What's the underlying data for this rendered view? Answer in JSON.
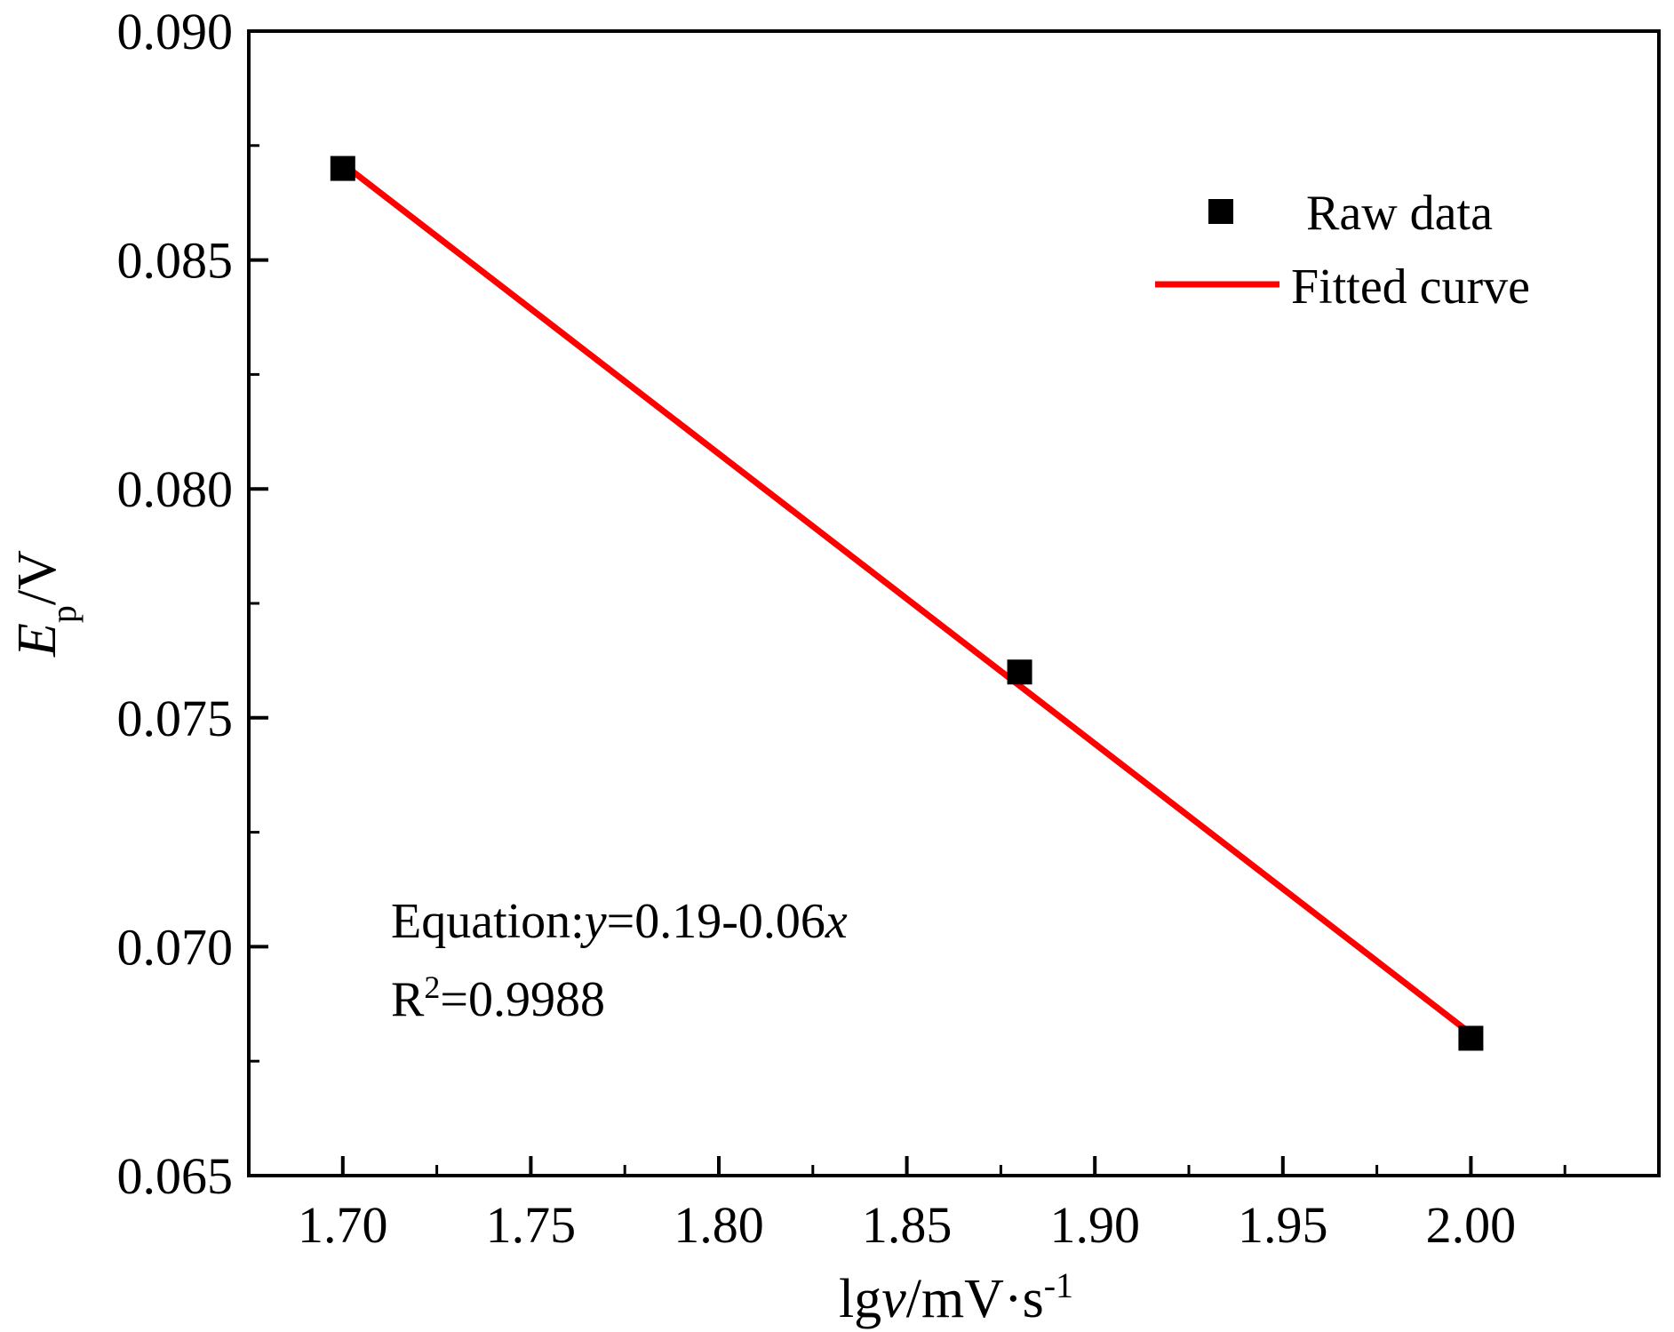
{
  "chart_data": {
    "type": "scatter",
    "x": [
      1.7,
      1.88,
      2.0
    ],
    "y": [
      0.087,
      0.076,
      0.068
    ],
    "series": [
      {
        "name": "Raw data",
        "kind": "scatter",
        "x": [
          1.7,
          1.88,
          2.0
        ],
        "y": [
          0.087,
          0.076,
          0.068
        ]
      },
      {
        "name": "Fitted curve",
        "kind": "line",
        "x": [
          1.7,
          2.0
        ],
        "y": [
          0.0871,
          0.0681
        ]
      }
    ],
    "xlim": [
      1.675,
      2.05
    ],
    "ylim": [
      0.065,
      0.09
    ],
    "xticks": [
      "1.70",
      "1.75",
      "1.80",
      "1.85",
      "1.90",
      "1.95",
      "2.00"
    ],
    "yticks": [
      "0.065",
      "0.070",
      "0.075",
      "0.080",
      "0.085",
      "0.090"
    ],
    "xlabel": {
      "base": "lg",
      "italic": "v",
      "unit": "/mV·s",
      "sup": "-1"
    },
    "ylabel": {
      "italic": "E",
      "sub": "p",
      "unit": "/V"
    },
    "annotation": {
      "equation_prefix": "Equation:",
      "equation_y": "y",
      "equation_mid": "=0.19-0.06",
      "equation_x": "x",
      "r2_base": "R",
      "r2_sup": "2",
      "r2_value": "=0.9988"
    },
    "legend": [
      {
        "label": "Raw data",
        "marker": "square"
      },
      {
        "label": "Fitted curve",
        "marker": "line"
      }
    ],
    "legend_position": "top-right",
    "colors": {
      "scatter": "#000000",
      "line": "#ff0000",
      "axes": "#000000"
    },
    "grid": false
  }
}
